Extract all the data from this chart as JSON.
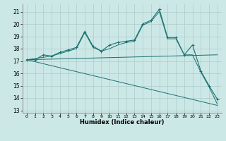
{
  "xlabel": "Humidex (Indice chaleur)",
  "bg_color": "#cce8e6",
  "grid_color": "#aaccca",
  "line_color": "#1a7070",
  "xlim": [
    -0.5,
    23.5
  ],
  "ylim": [
    12.8,
    21.6
  ],
  "yticks": [
    13,
    14,
    15,
    16,
    17,
    18,
    19,
    20,
    21
  ],
  "line1_x": [
    0,
    1,
    2,
    3,
    4,
    5,
    6,
    7,
    8,
    9,
    10,
    11,
    12,
    13,
    14,
    15,
    16,
    17,
    18,
    19,
    20,
    21,
    22,
    23
  ],
  "line1_y": [
    17.1,
    17.1,
    17.5,
    17.4,
    17.7,
    17.9,
    18.1,
    19.4,
    18.2,
    17.8,
    18.3,
    18.5,
    18.6,
    18.7,
    20.0,
    20.3,
    21.2,
    18.9,
    18.9,
    17.5,
    18.3,
    16.2,
    15.0,
    13.9
  ],
  "line2_x": [
    0,
    3,
    4,
    5,
    6,
    7,
    8,
    9,
    10,
    11,
    12,
    13,
    14,
    15,
    16,
    17,
    18,
    19,
    20,
    21,
    22,
    23
  ],
  "line2_y": [
    17.1,
    17.4,
    17.6,
    17.8,
    18.0,
    19.3,
    18.1,
    17.8,
    18.0,
    18.3,
    18.5,
    18.6,
    19.9,
    20.2,
    21.0,
    18.8,
    18.8,
    17.5,
    17.5,
    16.1,
    14.9,
    13.5
  ],
  "line3_x": [
    0,
    23
  ],
  "line3_y": [
    17.1,
    17.5
  ],
  "line4_x": [
    0,
    23
  ],
  "line4_y": [
    17.1,
    13.4
  ]
}
